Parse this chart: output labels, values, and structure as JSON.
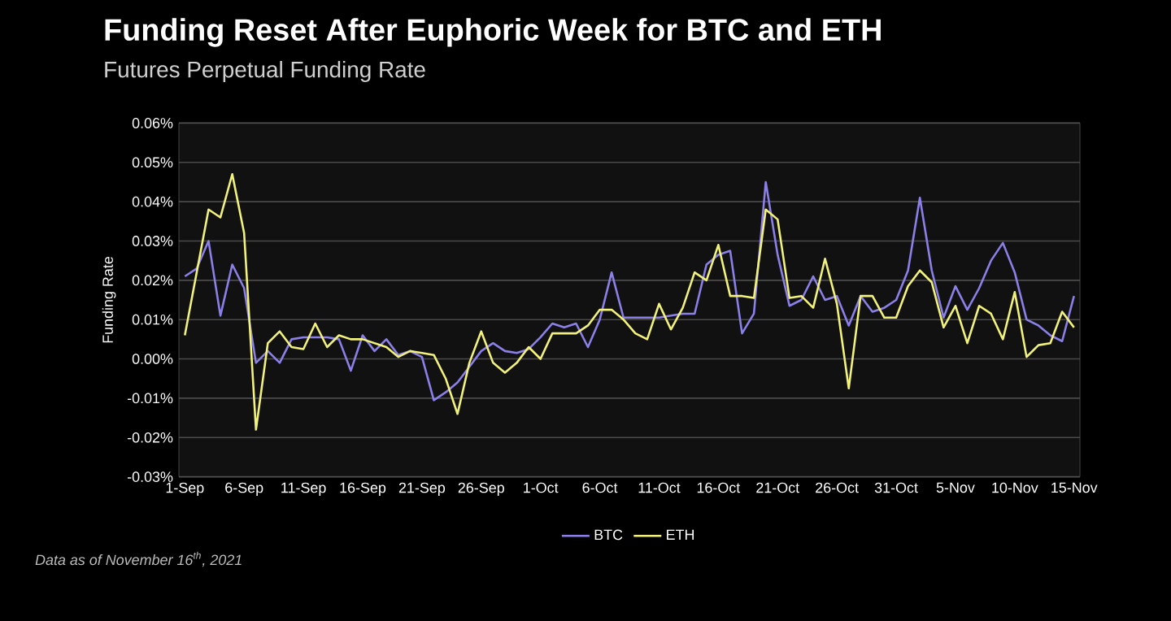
{
  "chart_data": {
    "type": "line",
    "title": "Funding Reset After Euphoric Week for BTC and ETH",
    "subtitle": "Futures Perpetual Funding Rate",
    "ylabel": "Funding Rate",
    "annotations": [
      "Data as of November 16$^{th}$, 2021"
    ],
    "categories": [
      "1-Sep",
      null,
      null,
      null,
      null,
      "6-Sep",
      null,
      null,
      null,
      null,
      "11-Sep",
      null,
      null,
      null,
      null,
      "16-Sep",
      null,
      null,
      null,
      null,
      "21-Sep",
      null,
      null,
      null,
      null,
      "26-Sep",
      null,
      null,
      null,
      null,
      "1-Oct",
      null,
      null,
      null,
      null,
      "6-Oct",
      null,
      null,
      null,
      null,
      "11-Oct",
      null,
      null,
      null,
      null,
      "16-Oct",
      null,
      null,
      null,
      null,
      "21-Oct",
      null,
      null,
      null,
      null,
      "26-Oct",
      null,
      null,
      null,
      null,
      "31-Oct",
      null,
      null,
      null,
      null,
      "5-Nov",
      null,
      null,
      null,
      null,
      "10-Nov",
      null,
      null,
      null,
      null,
      "15-Nov"
    ],
    "series": [
      {
        "name": "BTC",
        "color": "#8b80e8",
        "values": [
          0.021,
          0.023,
          0.03,
          0.011,
          0.024,
          0.018,
          -0.001,
          0.002,
          -0.001,
          0.005,
          0.0055,
          0.0055,
          0.0055,
          0.005,
          -0.003,
          0.006,
          0.002,
          0.005,
          0.001,
          0.002,
          0.0005,
          -0.0105,
          -0.0085,
          -0.006,
          -0.002,
          0.002,
          0.004,
          0.002,
          0.0015,
          0.0025,
          0.0055,
          0.009,
          0.008,
          0.009,
          0.003,
          0.01,
          0.022,
          0.0105,
          0.0105,
          0.0105,
          0.0105,
          0.011,
          0.0115,
          0.0115,
          0.024,
          0.0265,
          0.0275,
          0.0065,
          0.0115,
          0.045,
          0.0265,
          0.0135,
          0.015,
          0.021,
          0.015,
          0.016,
          0.0085,
          0.016,
          0.012,
          0.013,
          0.015,
          0.0225,
          0.041,
          0.0225,
          0.0105,
          0.0185,
          0.0125,
          0.018,
          0.025,
          0.0295,
          0.022,
          0.01,
          0.0085,
          0.006,
          0.0045,
          0.016
        ]
      },
      {
        "name": "ETH",
        "color": "#f2f27a",
        "values": [
          0.006,
          0.022,
          0.038,
          0.036,
          0.047,
          0.032,
          -0.018,
          0.004,
          0.007,
          0.003,
          0.0025,
          0.009,
          0.003,
          0.006,
          0.005,
          0.005,
          0.004,
          0.003,
          0.0005,
          0.002,
          0.0015,
          0.001,
          -0.005,
          -0.014,
          -0.001,
          0.007,
          -0.001,
          -0.0035,
          -0.001,
          0.003,
          0.0,
          0.0065,
          0.0065,
          0.0065,
          0.0085,
          0.0125,
          0.0125,
          0.01,
          0.0065,
          0.005,
          0.014,
          0.0075,
          0.013,
          0.022,
          0.02,
          0.029,
          0.016,
          0.016,
          0.0155,
          0.038,
          0.0355,
          0.0155,
          0.016,
          0.013,
          0.0255,
          0.014,
          -0.0075,
          0.016,
          0.016,
          0.0105,
          0.0105,
          0.0185,
          0.0225,
          0.0195,
          0.008,
          0.0135,
          0.004,
          0.0135,
          0.0115,
          0.005,
          0.017,
          0.0005,
          0.0035,
          0.004,
          0.012,
          0.008
        ]
      }
    ],
    "ylim": [
      -0.03,
      0.06
    ],
    "yticks": [
      {
        "value": 0.06,
        "label": "0.06%"
      },
      {
        "value": 0.05,
        "label": "0.05%"
      },
      {
        "value": 0.04,
        "label": "0.04%"
      },
      {
        "value": 0.03,
        "label": "0.03%"
      },
      {
        "value": 0.02,
        "label": "0.02%"
      },
      {
        "value": 0.01,
        "label": "0.01%"
      },
      {
        "value": 0.0,
        "label": "0.00%"
      },
      {
        "value": -0.01,
        "label": "-0.01%"
      },
      {
        "value": -0.02,
        "label": "-0.02%"
      },
      {
        "value": -0.03,
        "label": "-0.03%"
      }
    ],
    "grid": "y",
    "legend": "bottom"
  }
}
